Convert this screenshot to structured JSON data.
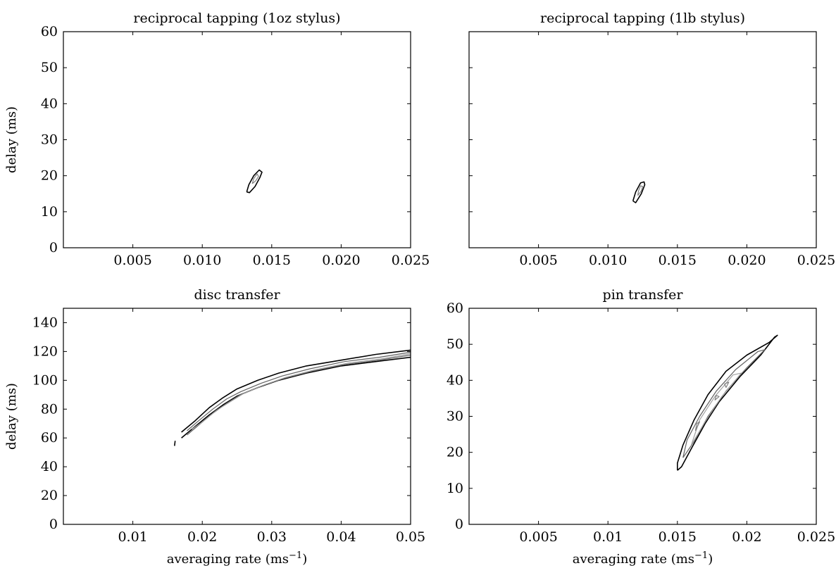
{
  "chart_data": [
    {
      "type": "contour",
      "title": "reciprocal tapping (1oz stylus)",
      "xlabel": "",
      "ylabel": "delay (ms)",
      "xlim": [
        0,
        0.025
      ],
      "ylim": [
        0,
        60
      ],
      "xticks": [
        0.005,
        0.01,
        0.015,
        0.02,
        0.025
      ],
      "xtick_labels": [
        "0.005",
        "0.010",
        "0.015",
        "0.020",
        "0.025"
      ],
      "yticks": [
        0,
        10,
        20,
        30,
        40,
        50,
        60
      ],
      "ytick_labels": [
        "0",
        "10",
        "20",
        "30",
        "40",
        "50",
        "60"
      ],
      "y_tick_labels_shown": true,
      "grid": false,
      "contours": [
        {
          "level": "outer",
          "color": "#000000",
          "points": [
            [
              0.0132,
              15.5
            ],
            [
              0.0134,
              15.3
            ],
            [
              0.0138,
              17.0
            ],
            [
              0.01415,
              19.5
            ],
            [
              0.0143,
              21.0
            ],
            [
              0.0141,
              21.6
            ],
            [
              0.0137,
              20.0
            ],
            [
              0.01335,
              17.5
            ],
            [
              0.0132,
              15.5
            ]
          ]
        },
        {
          "level": "inner",
          "color": "#808080",
          "points": [
            [
              0.0136,
              17.8
            ],
            [
              0.01385,
              18.6
            ],
            [
              0.01405,
              19.8
            ],
            [
              0.01395,
              20.5
            ],
            [
              0.0137,
              19.2
            ],
            [
              0.0136,
              17.8
            ]
          ]
        }
      ]
    },
    {
      "type": "contour",
      "title": "reciprocal tapping (1lb stylus)",
      "xlabel": "",
      "ylabel": "",
      "xlim": [
        0,
        0.025
      ],
      "ylim": [
        0,
        60
      ],
      "xticks": [
        0.005,
        0.01,
        0.015,
        0.02,
        0.025
      ],
      "xtick_labels": [
        "0.005",
        "0.010",
        "0.015",
        "0.020",
        "0.025"
      ],
      "yticks": [
        0,
        10,
        20,
        30,
        40,
        50,
        60
      ],
      "ytick_labels": [],
      "y_tick_labels_shown": false,
      "grid": false,
      "contours": [
        {
          "level": "outer",
          "color": "#000000",
          "points": [
            [
              0.0118,
              13.0
            ],
            [
              0.012,
              12.5
            ],
            [
              0.0124,
              15.0
            ],
            [
              0.01265,
              17.5
            ],
            [
              0.0126,
              18.3
            ],
            [
              0.01235,
              18.0
            ],
            [
              0.012,
              15.5
            ],
            [
              0.0118,
              13.0
            ]
          ]
        },
        {
          "level": "inner",
          "color": "#808080",
          "points": [
            [
              0.01215,
              14.5
            ],
            [
              0.0124,
              15.8
            ],
            [
              0.0125,
              17.0
            ],
            [
              0.01235,
              17.2
            ],
            [
              0.0122,
              15.8
            ],
            [
              0.01215,
              14.5
            ]
          ]
        }
      ]
    },
    {
      "type": "contour",
      "title": "disc transfer",
      "xlabel": "averaging rate (ms⁻¹)",
      "ylabel": "delay (ms)",
      "xlim": [
        0,
        0.05
      ],
      "ylim": [
        0,
        150
      ],
      "xticks": [
        0.01,
        0.02,
        0.03,
        0.04,
        0.05
      ],
      "xtick_labels": [
        "0.01",
        "0.02",
        "0.03",
        "0.04",
        "0.05"
      ],
      "yticks": [
        0,
        20,
        40,
        60,
        80,
        100,
        120,
        140
      ],
      "ytick_labels": [
        "0",
        "20",
        "40",
        "60",
        "80",
        "100",
        "120",
        "140"
      ],
      "y_tick_labels_shown": true,
      "grid": false,
      "contours": [
        {
          "level": "outer-upper",
          "color": "#000000",
          "points": [
            [
              0.017,
              64
            ],
            [
              0.019,
              72
            ],
            [
              0.021,
              81
            ],
            [
              0.023,
              88
            ],
            [
              0.025,
              94
            ],
            [
              0.028,
              100
            ],
            [
              0.031,
              105
            ],
            [
              0.035,
              110
            ],
            [
              0.04,
              114
            ],
            [
              0.045,
              118
            ],
            [
              0.05,
              121
            ]
          ]
        },
        {
          "level": "outer-lower",
          "color": "#000000",
          "points": [
            [
              0.017,
              60
            ],
            [
              0.019,
              68
            ],
            [
              0.021,
              76
            ],
            [
              0.023,
              83
            ],
            [
              0.025,
              89
            ],
            [
              0.028,
              95
            ],
            [
              0.031,
              100
            ],
            [
              0.035,
              105
            ],
            [
              0.04,
              110
            ],
            [
              0.045,
              113
            ],
            [
              0.05,
              116
            ]
          ]
        },
        {
          "level": "mid-upper",
          "color": "#606060",
          "points": [
            [
              0.0178,
              65
            ],
            [
              0.0195,
              72
            ],
            [
              0.0215,
              80
            ],
            [
              0.0235,
              87
            ],
            [
              0.0255,
              92
            ],
            [
              0.0285,
              98
            ],
            [
              0.0315,
              103
            ],
            [
              0.0355,
              108
            ],
            [
              0.0405,
              113
            ],
            [
              0.0455,
              116
            ],
            [
              0.05,
              119.5
            ]
          ]
        },
        {
          "level": "mid-lower",
          "color": "#606060",
          "points": [
            [
              0.0178,
              62
            ],
            [
              0.0195,
              69
            ],
            [
              0.0215,
              77
            ],
            [
              0.0235,
              84
            ],
            [
              0.0255,
              90
            ],
            [
              0.0285,
              96
            ],
            [
              0.0315,
              101
            ],
            [
              0.0355,
              106
            ],
            [
              0.0405,
              111
            ],
            [
              0.0455,
              114
            ],
            [
              0.05,
              117.5
            ]
          ]
        },
        {
          "level": "inner",
          "color": "#a0a0a0",
          "points": [
            [
              0.0185,
              66
            ],
            [
              0.02,
              71
            ],
            [
              0.022,
              79
            ],
            [
              0.024,
              85
            ],
            [
              0.026,
              91
            ],
            [
              0.029,
              97
            ],
            [
              0.032,
              102
            ],
            [
              0.036,
              107
            ],
            [
              0.041,
              112
            ],
            [
              0.046,
              115
            ],
            [
              0.05,
              118.5
            ]
          ]
        },
        {
          "level": "tip",
          "color": "#000000",
          "points": [
            [
              0.016,
              54.5
            ],
            [
              0.0161,
              58.0
            ]
          ]
        }
      ]
    },
    {
      "type": "contour",
      "title": "pin transfer",
      "xlabel": "averaging rate (ms⁻¹)",
      "ylabel": "",
      "xlim": [
        0,
        0.025
      ],
      "ylim": [
        0,
        60
      ],
      "xticks": [
        0.005,
        0.01,
        0.015,
        0.02,
        0.025
      ],
      "xtick_labels": [
        "0.005",
        "0.01",
        "0.015",
        "0.02",
        "0.025"
      ],
      "yticks": [
        0,
        10,
        20,
        30,
        40,
        50,
        60
      ],
      "ytick_labels": [
        "0",
        "10",
        "20",
        "30",
        "40",
        "50",
        "60"
      ],
      "y_tick_labels_shown": true,
      "grid": false,
      "contours": [
        {
          "level": "outer",
          "color": "#000000",
          "points": [
            [
              0.015,
              15.0
            ],
            [
              0.0153,
              16.0
            ],
            [
              0.016,
              21.0
            ],
            [
              0.017,
              28.0
            ],
            [
              0.018,
              34.0
            ],
            [
              0.0195,
              41.0
            ],
            [
              0.021,
              47.0
            ],
            [
              0.022,
              52.0
            ],
            [
              0.0222,
              52.5
            ],
            [
              0.0216,
              50.5
            ],
            [
              0.02,
              47.0
            ],
            [
              0.0185,
              42.5
            ],
            [
              0.0172,
              36.0
            ],
            [
              0.0162,
              29.0
            ],
            [
              0.0154,
              22.0
            ],
            [
              0.015,
              17.0
            ],
            [
              0.015,
              15.0
            ]
          ]
        },
        {
          "level": "middle",
          "color": "#606060",
          "points": [
            [
              0.0154,
              18.5
            ],
            [
              0.0162,
              23.0
            ],
            [
              0.0172,
              30.0
            ],
            [
              0.0185,
              37.0
            ],
            [
              0.02,
              43.5
            ],
            [
              0.0213,
              48.5
            ],
            [
              0.0208,
              48.0
            ],
            [
              0.0192,
              43.0
            ],
            [
              0.0178,
              37.0
            ],
            [
              0.0166,
              30.0
            ],
            [
              0.0157,
              23.5
            ],
            [
              0.0154,
              18.5
            ]
          ]
        },
        {
          "level": "inner",
          "color": "#a0a0a0",
          "points": [
            [
              0.016,
              22.0
            ],
            [
              0.017,
              28.5
            ],
            [
              0.0182,
              35.5
            ],
            [
              0.0196,
              42.0
            ],
            [
              0.019,
              41.5
            ],
            [
              0.0177,
              35.5
            ],
            [
              0.0166,
              29.0
            ],
            [
              0.016,
              22.0
            ]
          ]
        },
        {
          "level": "spot-1",
          "color": "#808080",
          "points": [
            [
              0.0163,
              26.0
            ],
            [
              0.0166,
              28.5
            ],
            [
              0.0164,
              28.0
            ],
            [
              0.0163,
              26.0
            ]
          ]
        },
        {
          "level": "spot-2",
          "color": "#808080",
          "points": [
            [
              0.0185,
              38.0
            ],
            [
              0.0187,
              39.5
            ],
            [
              0.0184,
              39.0
            ],
            [
              0.0185,
              38.0
            ]
          ]
        },
        {
          "level": "spot-3",
          "color": "#808080",
          "points": [
            [
              0.0177,
              34.5
            ],
            [
              0.018,
              35.5
            ],
            [
              0.0178,
              35.8
            ],
            [
              0.0177,
              34.5
            ]
          ]
        }
      ]
    }
  ]
}
